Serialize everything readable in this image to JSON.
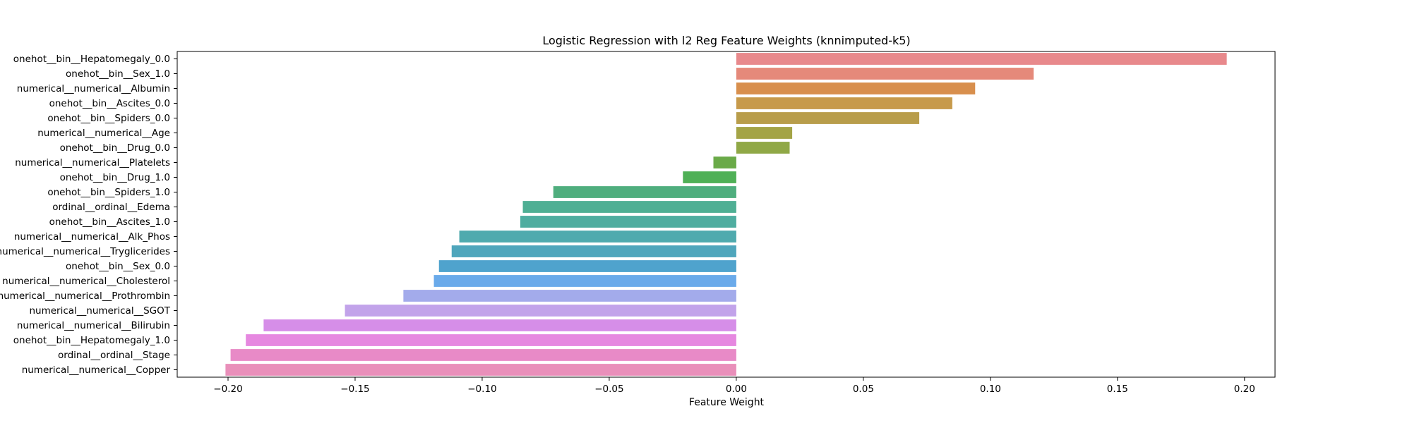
{
  "chart_data": {
    "type": "bar",
    "orientation": "horizontal",
    "title": "Logistic Regression with l2 Reg Feature Weights (knnimputed-k5)",
    "xlabel": "Feature Weight",
    "ylabel": "",
    "xlim": [
      -0.22,
      0.212
    ],
    "xticks": [
      -0.2,
      -0.15,
      -0.1,
      -0.05,
      0.0,
      0.05,
      0.1,
      0.15,
      0.2
    ],
    "xtick_labels": [
      "−0.20",
      "−0.15",
      "−0.10",
      "−0.05",
      "0.00",
      "0.05",
      "0.10",
      "0.15",
      "0.20"
    ],
    "grid": false,
    "legend": "none",
    "categories": [
      "onehot__bin__Hepatomegaly_0.0",
      "onehot__bin__Sex_1.0",
      "numerical__numerical__Albumin",
      "onehot__bin__Ascites_0.0",
      "onehot__bin__Spiders_0.0",
      "numerical__numerical__Age",
      "onehot__bin__Drug_0.0",
      "numerical__numerical__Platelets",
      "onehot__bin__Drug_1.0",
      "onehot__bin__Spiders_1.0",
      "ordinal__ordinal__Edema",
      "onehot__bin__Ascites_1.0",
      "numerical__numerical__Alk_Phos",
      "numerical__numerical__Tryglicerides",
      "onehot__bin__Sex_0.0",
      "numerical__numerical__Cholesterol",
      "numerical__numerical__Prothrombin",
      "numerical__numerical__SGOT",
      "numerical__numerical__Bilirubin",
      "onehot__bin__Hepatomegaly_1.0",
      "ordinal__ordinal__Stage",
      "numerical__numerical__Copper"
    ],
    "values": [
      0.193,
      0.117,
      0.094,
      0.085,
      0.072,
      0.022,
      0.021,
      -0.009,
      -0.021,
      -0.072,
      -0.084,
      -0.085,
      -0.109,
      -0.112,
      -0.117,
      -0.119,
      -0.131,
      -0.154,
      -0.186,
      -0.193,
      -0.199,
      -0.201
    ],
    "colors": [
      "#e8898c",
      "#e5897a",
      "#d88f4d",
      "#c79a4b",
      "#b89d4b",
      "#a4a446",
      "#90a846",
      "#6aaa48",
      "#4fb056",
      "#4fae7e",
      "#4faf94",
      "#4fada0",
      "#4faaae",
      "#4fa6bc",
      "#4fa3cd",
      "#6aaaea",
      "#a3abeb",
      "#c2a3ea",
      "#d68ee8",
      "#e688e0",
      "#e88ac7",
      "#e98fba"
    ]
  }
}
